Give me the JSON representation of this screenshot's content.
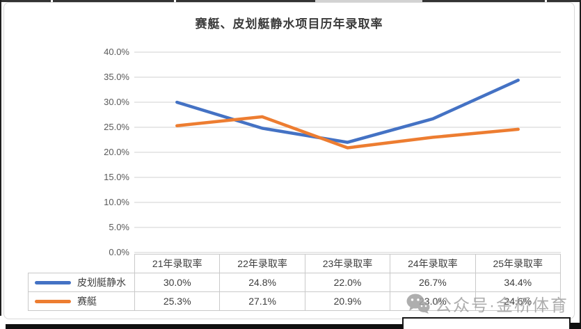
{
  "chart_data": {
    "type": "line",
    "title": "赛艇、皮划艇静水项目历年录取率",
    "categories": [
      "21年录取率",
      "22年录取率",
      "23年录取率",
      "24年录取率",
      "25年录取率"
    ],
    "series": [
      {
        "name": "皮划艇静水",
        "color": "#4472C4",
        "values": [
          30.0,
          24.8,
          22.0,
          26.7,
          34.4
        ]
      },
      {
        "name": "赛艇",
        "color": "#ED7D31",
        "values": [
          25.3,
          27.1,
          20.9,
          23.0,
          24.6
        ]
      }
    ],
    "table_values": [
      [
        "30.0%",
        "24.8%",
        "22.0%",
        "26.7%",
        "34.4%"
      ],
      [
        "25.3%",
        "27.1%",
        "20.9%",
        "23.0%",
        "24.6%"
      ]
    ],
    "ylim": [
      0,
      40
    ],
    "ytick_step": 5,
    "ytick_labels": [
      "0.0%",
      "5.0%",
      "10.0%",
      "15.0%",
      "20.0%",
      "25.0%",
      "30.0%",
      "35.0%",
      "40.0%"
    ],
    "grid": true,
    "legend_position": "table-left",
    "gridline_color": "#d9d9d9",
    "axis_text_color": "#595959"
  },
  "watermark": {
    "text": "公众号·金桥体育",
    "icon": "wechat-icon"
  }
}
